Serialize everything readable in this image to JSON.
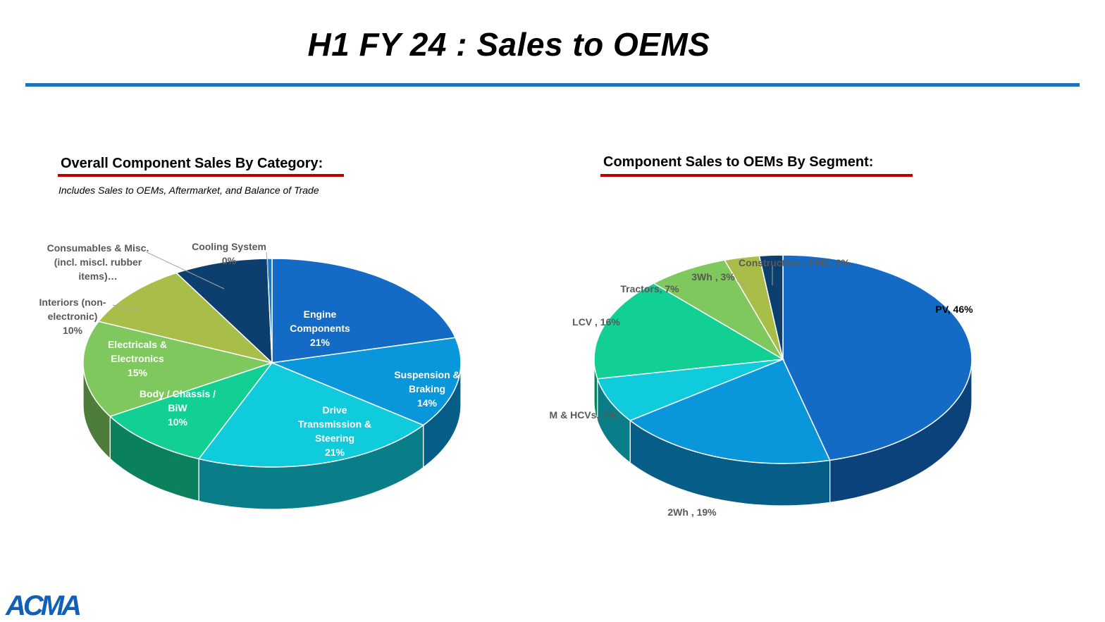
{
  "slide": {
    "title": "H1 FY 24 : Sales to OEMS",
    "logo_text": "ACMA"
  },
  "left_section": {
    "heading": "Overall Component Sales By Category:",
    "subheading": "Includes Sales to OEMs, Aftermarket, and Balance of Trade"
  },
  "right_section": {
    "heading": "Component Sales to OEMs By Segment:"
  },
  "colors": {
    "title_rule": "#1f72be",
    "heading_underline": "#c00000"
  },
  "chart_data": [
    {
      "type": "pie",
      "style": "3d",
      "title": "Overall Component Sales By Category:",
      "slices": [
        {
          "label": "Engine Components",
          "label_lines": [
            "Engine",
            "Components",
            "21%"
          ],
          "value": 21,
          "color": "#136bc6"
        },
        {
          "label": "Suspension & Braking",
          "label_lines": [
            "Suspension &",
            "Braking",
            "14%"
          ],
          "value": 14,
          "color": "#0a96da"
        },
        {
          "label": "Drive Transmission & Steering",
          "label_lines": [
            "Drive",
            "Transmission &",
            "Steering",
            "21%"
          ],
          "value": 21,
          "color": "#0fcbdc"
        },
        {
          "label": "Body / Chassis / BiW",
          "label_lines": [
            "Body / Chassis /",
            "BiW",
            "10%"
          ],
          "value": 10,
          "color": "#12cf94"
        },
        {
          "label": "Electricals & Electronics",
          "label_lines": [
            "Electricals &",
            "Electronics",
            "15%"
          ],
          "value": 15,
          "color": "#7ec85e"
        },
        {
          "label": "Interiors (non-electronic)",
          "label_lines": [
            "Interiors (non-",
            "electronic)",
            "10%"
          ],
          "value": 10,
          "color": "#a8be48"
        },
        {
          "label": "Consumables & Misc. (incl. miscl. rubber items)…",
          "label_lines": [
            "Consumables & Misc.",
            "(incl. miscl. rubber",
            "items)…"
          ],
          "value": 8,
          "color": "#0c3e6e"
        },
        {
          "label": "Cooling System",
          "label_lines": [
            "Cooling System",
            "0%"
          ],
          "value": 0.4,
          "color": "#1678c6"
        }
      ]
    },
    {
      "type": "pie",
      "style": "3d",
      "title": "Component Sales to OEMs By Segment:",
      "slices": [
        {
          "label": "PV",
          "label_lines": [
            "PV, 46%"
          ],
          "value": 46,
          "color": "#136bc6"
        },
        {
          "label": "2Wh",
          "label_lines": [
            "2Wh , 19%"
          ],
          "value": 19,
          "color": "#0a96da"
        },
        {
          "label": "M & HCVs",
          "label_lines": [
            "M & HCVs, 7%"
          ],
          "value": 7,
          "color": "#0fcbdc"
        },
        {
          "label": "LCV",
          "label_lines": [
            "LCV , 16%"
          ],
          "value": 16,
          "color": "#12cf94"
        },
        {
          "label": "Tractors",
          "label_lines": [
            "Tractors, 7%"
          ],
          "value": 7,
          "color": "#7ec85e"
        },
        {
          "label": "3Wh",
          "label_lines": [
            "3Wh , 3%"
          ],
          "value": 3,
          "color": "#a8be48"
        },
        {
          "label": "Construction - EME",
          "label_lines": [
            "Construction - EME, 2%"
          ],
          "value": 2,
          "color": "#0c3e6e"
        }
      ]
    }
  ]
}
